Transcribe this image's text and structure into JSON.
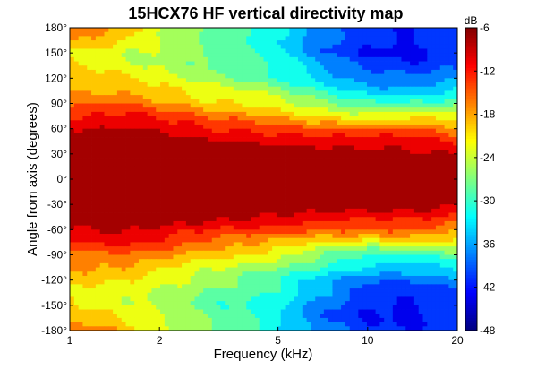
{
  "chart_data": {
    "type": "heatmap",
    "title": "15HCX76 HF vertical directivity map",
    "xlabel": "Frequency (kHz)",
    "ylabel": "Angle from axis (degrees)",
    "xscale": "log",
    "xlim": [
      1,
      20
    ],
    "ylim": [
      -180,
      180
    ],
    "x_ticks": [
      1,
      2,
      5,
      10,
      20
    ],
    "x_tick_labels": [
      "1",
      "2",
      "5",
      "10",
      "20"
    ],
    "y_ticks": [
      180,
      150,
      120,
      90,
      60,
      30,
      0,
      -30,
      -60,
      -90,
      -120,
      -150,
      -180
    ],
    "y_tick_labels": [
      "180°",
      "150°",
      "120°",
      "90°",
      "60°",
      "30°",
      "0°",
      "-30°",
      "-60°",
      "-90°",
      "-120°",
      "-150°",
      "-180°"
    ],
    "colorbar": {
      "label": "dB",
      "range": [
        -48,
        -6
      ],
      "ticks": [
        -6,
        -12,
        -18,
        -24,
        -30,
        -36,
        -42,
        -48
      ],
      "tick_labels": [
        "-6",
        "-12",
        "-18",
        "-24",
        "-30",
        "-36",
        "-42",
        "-48"
      ],
      "contour_step": 3,
      "colormap": "jet"
    },
    "frequencies_khz": [
      1,
      1.5,
      2,
      3,
      4,
      5,
      7,
      10,
      14,
      20
    ],
    "angles_deg": [
      180,
      150,
      120,
      90,
      60,
      30,
      0,
      -30,
      -60,
      -90,
      -120,
      -150,
      -180
    ],
    "values_db": [
      [
        -15,
        -18,
        -23,
        -27,
        -30,
        -33,
        -38,
        -41,
        -42,
        -38
      ],
      [
        -21,
        -24,
        -25,
        -29,
        -30,
        -32,
        -38,
        -42,
        -43,
        -41
      ],
      [
        -20,
        -21,
        -23,
        -26,
        -28,
        -30,
        -34,
        -38,
        -39,
        -37
      ],
      [
        -16,
        -15,
        -17,
        -20,
        -21,
        -23,
        -27,
        -30,
        -30,
        -28
      ],
      [
        -9,
        -8,
        -9,
        -12,
        -13,
        -14,
        -15,
        -15,
        -14,
        -17
      ],
      [
        -5,
        -4,
        -4,
        -5,
        -5,
        -5,
        -6,
        -7,
        -8,
        -9
      ],
      [
        -3,
        -3,
        -3,
        -3,
        -3,
        -3,
        -3,
        -3,
        -4,
        -4
      ],
      [
        -5,
        -4,
        -4,
        -5,
        -5,
        -5,
        -6,
        -7,
        -8,
        -9
      ],
      [
        -9,
        -8,
        -9,
        -12,
        -13,
        -14,
        -15,
        -15,
        -14,
        -17
      ],
      [
        -16,
        -15,
        -17,
        -20,
        -21,
        -23,
        -27,
        -30,
        -30,
        -28
      ],
      [
        -20,
        -21,
        -23,
        -26,
        -28,
        -30,
        -34,
        -38,
        -39,
        -37
      ],
      [
        -21,
        -24,
        -25,
        -29,
        -30,
        -32,
        -38,
        -42,
        -43,
        -41
      ],
      [
        -15,
        -18,
        -23,
        -27,
        -30,
        -33,
        -38,
        -41,
        -42,
        -38
      ]
    ]
  }
}
